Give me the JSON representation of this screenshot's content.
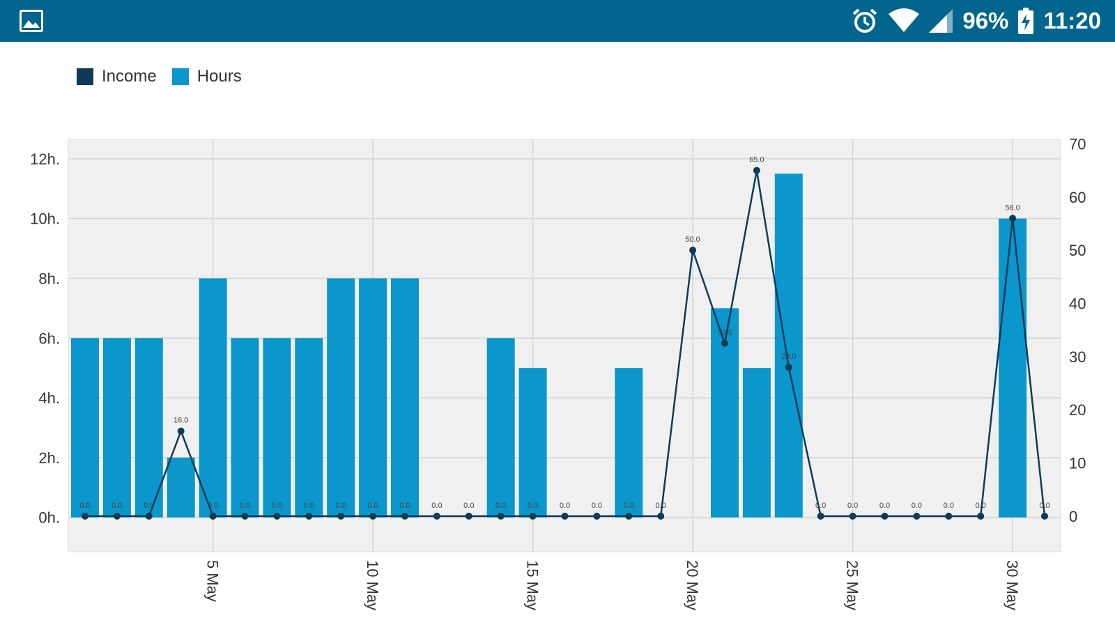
{
  "status_bar": {
    "battery": "96%",
    "time": "11:20",
    "icons": [
      "gallery-icon",
      "alarm-icon",
      "wifi-icon",
      "signal-icon",
      "battery-charging-icon"
    ]
  },
  "colors": {
    "status_bar_bg": "#02658d",
    "income": "#0e3a58",
    "hours": "#0b96cc",
    "plot_bg": "#f0f0f0",
    "grid": "#d4d4d4"
  },
  "legend": {
    "income_label": "Income",
    "hours_label": "Hours"
  },
  "chart_data": {
    "type": "bar",
    "x": [
      1,
      2,
      3,
      4,
      5,
      6,
      7,
      8,
      9,
      10,
      11,
      12,
      13,
      14,
      15,
      16,
      17,
      18,
      19,
      20,
      21,
      22,
      23,
      24,
      25,
      26,
      27,
      28,
      29,
      30,
      31
    ],
    "x_ticks": [
      {
        "x": 5,
        "label": "5 May"
      },
      {
        "x": 10,
        "label": "10 May"
      },
      {
        "x": 15,
        "label": "15 May"
      },
      {
        "x": 20,
        "label": "20 May"
      },
      {
        "x": 25,
        "label": "25 May"
      },
      {
        "x": 30,
        "label": "30 May"
      }
    ],
    "y_left": {
      "ticks": [
        "0h.",
        "2h.",
        "4h.",
        "6h.",
        "8h.",
        "10h.",
        "12h."
      ],
      "values": [
        0,
        2,
        4,
        6,
        8,
        10,
        12
      ],
      "ylim": [
        -1.15,
        12.65
      ]
    },
    "y_right": {
      "ticks": [
        "0",
        "10",
        "20",
        "30",
        "40",
        "50",
        "60",
        "70"
      ],
      "values": [
        0,
        10,
        20,
        30,
        40,
        50,
        60,
        70
      ],
      "ylim": [
        -6.7,
        70.85
      ]
    },
    "series": [
      {
        "name": "Hours",
        "kind": "bar",
        "axis": "left",
        "x": [
          1,
          2,
          3,
          4,
          5,
          6,
          7,
          8,
          9,
          10,
          11,
          14,
          15,
          18,
          21,
          22,
          23,
          30
        ],
        "values": [
          6,
          6,
          6,
          2,
          8,
          6,
          6,
          6,
          8,
          8,
          8,
          6,
          5,
          5,
          7,
          5,
          11.5,
          10
        ]
      },
      {
        "name": "Income",
        "kind": "line",
        "axis": "right",
        "x": [
          1,
          2,
          3,
          4,
          5,
          6,
          7,
          8,
          9,
          10,
          11,
          12,
          13,
          14,
          15,
          16,
          17,
          18,
          19,
          20,
          21,
          22,
          23,
          24,
          25,
          26,
          27,
          28,
          29,
          30,
          31
        ],
        "values": [
          0,
          0,
          0,
          16,
          0,
          0,
          0,
          0,
          0,
          0,
          0,
          0,
          0,
          0,
          0,
          0,
          0,
          0,
          0,
          50,
          32.5,
          65,
          28,
          0,
          0,
          0,
          0,
          0,
          0,
          56,
          0
        ],
        "point_labels": [
          "0.0",
          "0.0",
          "0.0",
          "16.0",
          "0.0",
          "0.0",
          "0.0",
          "0.0",
          "0.0",
          "0.0",
          "0.0",
          "0.0",
          "0.0",
          "0.0",
          "0.0",
          "0.0",
          "0.0",
          "0.0",
          "0.0",
          "50.0",
          "32.5",
          "65.0",
          "28.0",
          "0.0",
          "0.0",
          "0.0",
          "0.0",
          "0.0",
          "0.0",
          "56.0",
          "0.0"
        ]
      }
    ],
    "grid": true,
    "legend_position": "top-left"
  }
}
